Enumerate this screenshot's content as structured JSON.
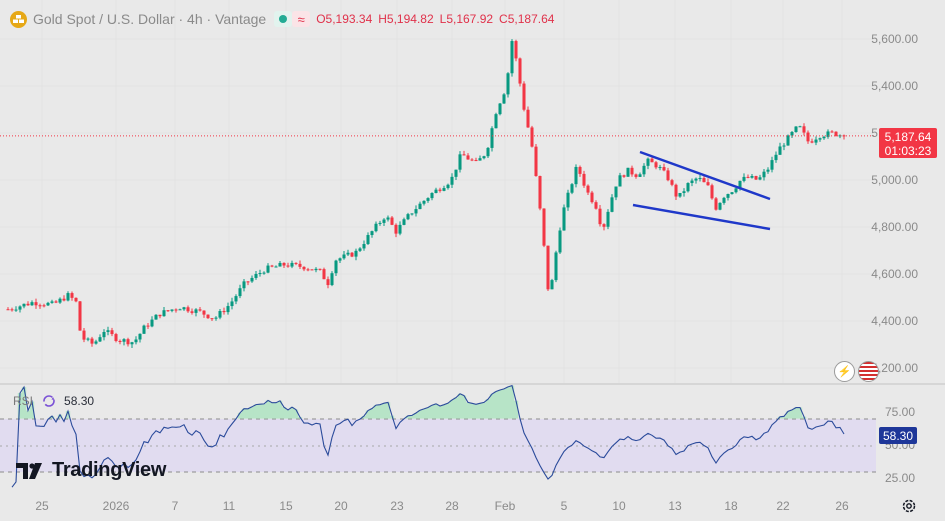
{
  "header": {
    "title": "Gold Spot / U.S. Dollar · 4h · Vantage",
    "ohlc": [
      {
        "key": "O",
        "value": "5,193.34"
      },
      {
        "key": "H",
        "value": "5,194.82"
      },
      {
        "key": "L",
        "value": "5,167.92"
      },
      {
        "key": "C",
        "value": "5,187.64"
      }
    ]
  },
  "price_label": {
    "price": "5,187.64",
    "countdown": "01:03:23"
  },
  "rsi": {
    "label": "RSI",
    "value": "58.30"
  },
  "brand": "TradingView",
  "colors": {
    "up": "#089981",
    "down": "#f23645",
    "rsi_line": "#2b4b9b",
    "rsi_band": "#e1dcf0",
    "trendline": "#1f38c9",
    "last_price": "#f23645",
    "background": "#e9e9e9",
    "axis_text": "#8a8a8a"
  },
  "chart_data": [
    {
      "type": "candlestick",
      "title": "Gold Spot / U.S. Dollar · 4h · Vantage",
      "x_tick_labels": [
        "25",
        "2026",
        "7",
        "11",
        "15",
        "20",
        "23",
        "28",
        "Feb",
        "5",
        "10",
        "13",
        "18",
        "22",
        "26"
      ],
      "y_ticks": [
        "5,600.00",
        "5,400.00",
        "5,200.00",
        "5,000.00",
        "4,800.00",
        "4,600.00",
        "4,400.00",
        "4,200.00"
      ],
      "ylim": [
        4170,
        5660
      ],
      "last_price": 5187.64,
      "price_path": [
        [
          0,
          4450
        ],
        [
          5,
          4480
        ],
        [
          9,
          4470
        ],
        [
          12,
          4510
        ],
        [
          13.5,
          4480
        ],
        [
          14.5,
          4330
        ],
        [
          17,
          4300
        ],
        [
          19,
          4360
        ],
        [
          22,
          4320
        ],
        [
          25,
          4310
        ],
        [
          27,
          4370
        ],
        [
          30,
          4430
        ],
        [
          34,
          4460
        ],
        [
          38,
          4440
        ],
        [
          41,
          4410
        ],
        [
          44,
          4470
        ],
        [
          47,
          4560
        ],
        [
          51,
          4620
        ],
        [
          55,
          4640
        ],
        [
          59,
          4630
        ],
        [
          62,
          4610
        ],
        [
          63.5,
          4560
        ],
        [
          65,
          4660
        ],
        [
          69,
          4690
        ],
        [
          73,
          4800
        ],
        [
          75,
          4850
        ],
        [
          77,
          4780
        ],
        [
          80,
          4860
        ],
        [
          84,
          4940
        ],
        [
          88,
          5000
        ],
        [
          90,
          5110
        ],
        [
          93,
          5070
        ],
        [
          95,
          5120
        ],
        [
          97,
          5300
        ],
        [
          99,
          5400
        ],
        [
          100,
          5600
        ],
        [
          101,
          5500
        ],
        [
          102.5,
          5300
        ],
        [
          104,
          5150
        ],
        [
          105.5,
          4900
        ],
        [
          106.5,
          4700
        ],
        [
          107.5,
          4480
        ],
        [
          108.5,
          4650
        ],
        [
          110,
          4850
        ],
        [
          112,
          4990
        ],
        [
          113,
          5060
        ],
        [
          115,
          4950
        ],
        [
          117,
          4880
        ],
        [
          118,
          4780
        ],
        [
          119.5,
          4900
        ],
        [
          121,
          5000
        ],
        [
          123,
          5040
        ],
        [
          125,
          5020
        ],
        [
          127,
          5080
        ],
        [
          129,
          5060
        ],
        [
          131,
          5010
        ],
        [
          133,
          4920
        ],
        [
          135,
          4980
        ],
        [
          137,
          5010
        ],
        [
          139,
          4970
        ],
        [
          140.5,
          4880
        ],
        [
          142,
          4930
        ],
        [
          144,
          4960
        ],
        [
          145.5,
          5000
        ],
        [
          147,
          5010
        ],
        [
          149,
          5000
        ],
        [
          151,
          5050
        ],
        [
          153,
          5130
        ],
        [
          155,
          5180
        ],
        [
          157,
          5230
        ],
        [
          159,
          5160
        ],
        [
          161,
          5190
        ],
        [
          164,
          5200
        ],
        [
          166,
          5187.64
        ]
      ],
      "annotations": [
        "descending wedge trendlines (Feb 10–20)"
      ]
    },
    {
      "type": "line",
      "title": "RSI",
      "y_ticks": [
        "75.00",
        "50.00",
        "25.00"
      ],
      "bands": [
        30,
        70
      ],
      "ylim": [
        18,
        95
      ],
      "last_value": 58.3
    }
  ]
}
